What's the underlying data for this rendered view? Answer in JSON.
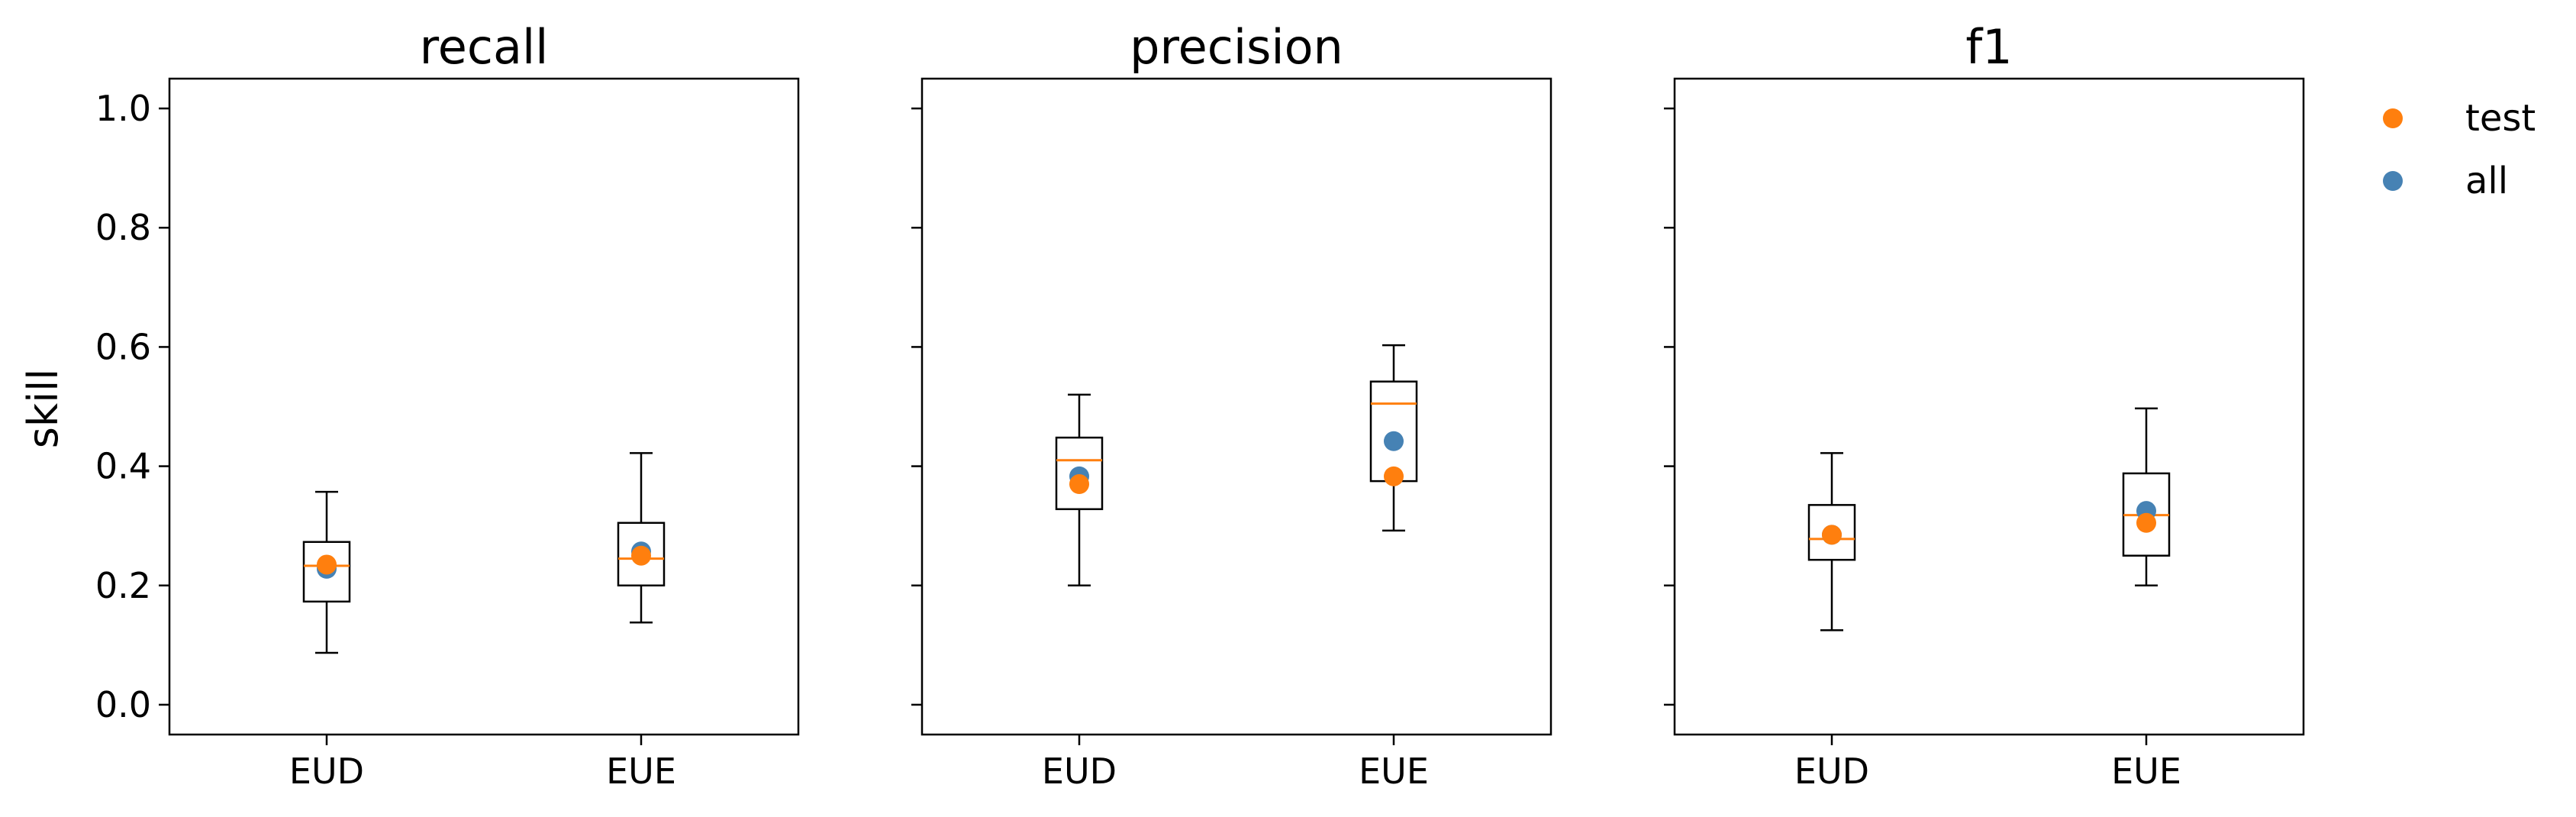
{
  "chart_data": {
    "type": "box",
    "ylabel": "skill",
    "ylim": [
      -0.05,
      1.05
    ],
    "yticks": [
      0.0,
      0.2,
      0.4,
      0.6,
      0.8,
      1.0
    ],
    "ytick_labels": [
      "0.0",
      "0.2",
      "0.4",
      "0.6",
      "0.8",
      "1.0"
    ],
    "categories": [
      "EUD",
      "EUE"
    ],
    "colors": {
      "box": "#000000",
      "median": "#ff7f0e",
      "test": "#ff7f0e",
      "all": "#4682b4"
    },
    "legend": {
      "placement": "right, outside plot",
      "items": [
        {
          "label": "test",
          "color": "#ff7f0e"
        },
        {
          "label": "all",
          "color": "#4682b4"
        }
      ]
    },
    "panels": [
      {
        "title": "recall",
        "boxes": [
          {
            "category": "EUD",
            "whisker_low": 0.087,
            "q1": 0.173,
            "median": 0.233,
            "q3": 0.273,
            "whisker_high": 0.357,
            "test": 0.235,
            "all": 0.228
          },
          {
            "category": "EUE",
            "whisker_low": 0.138,
            "q1": 0.2,
            "median": 0.245,
            "q3": 0.305,
            "whisker_high": 0.422,
            "test": 0.25,
            "all": 0.257
          }
        ]
      },
      {
        "title": "precision",
        "boxes": [
          {
            "category": "EUD",
            "whisker_low": 0.2,
            "q1": 0.328,
            "median": 0.41,
            "q3": 0.448,
            "whisker_high": 0.52,
            "test": 0.37,
            "all": 0.383
          },
          {
            "category": "EUE",
            "whisker_low": 0.292,
            "q1": 0.375,
            "median": 0.505,
            "q3": 0.542,
            "whisker_high": 0.603,
            "test": 0.383,
            "all": 0.442
          }
        ]
      },
      {
        "title": "f1",
        "boxes": [
          {
            "category": "EUD",
            "whisker_low": 0.125,
            "q1": 0.243,
            "median": 0.278,
            "q3": 0.335,
            "whisker_high": 0.422,
            "test": 0.285,
            "all": 0.285
          },
          {
            "category": "EUE",
            "whisker_low": 0.2,
            "q1": 0.25,
            "median": 0.318,
            "q3": 0.388,
            "whisker_high": 0.497,
            "test": 0.305,
            "all": 0.325
          }
        ]
      }
    ]
  }
}
